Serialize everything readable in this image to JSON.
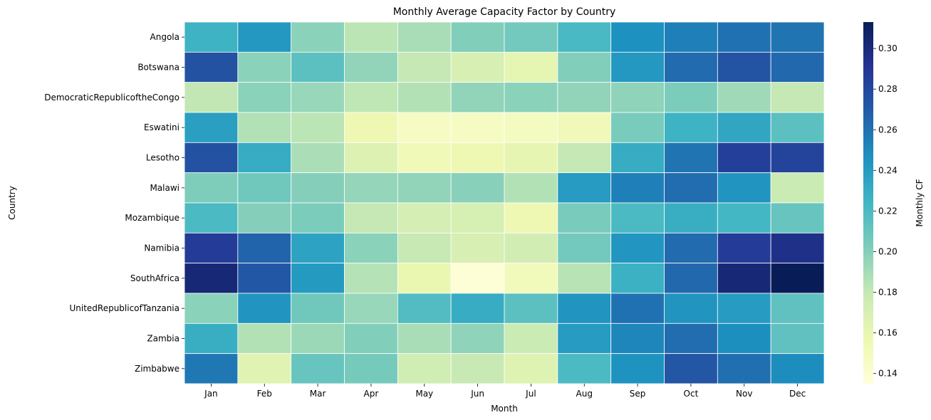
{
  "chart_data": {
    "type": "heatmap",
    "title": "Monthly Average Capacity Factor by Country",
    "xlabel": "Month",
    "ylabel": "Country",
    "colorbar_label": "Monthly CF",
    "colormap": "YlGnBu",
    "color_range": [
      0.135,
      0.313
    ],
    "colorbar_ticks": [
      "0.14",
      "0.16",
      "0.18",
      "0.20",
      "0.22",
      "0.24",
      "0.26",
      "0.28",
      "0.30"
    ],
    "colorbar_tick_values": [
      0.14,
      0.16,
      0.18,
      0.2,
      0.22,
      0.24,
      0.26,
      0.28,
      0.3
    ],
    "x": [
      "Jan",
      "Feb",
      "Mar",
      "Apr",
      "May",
      "Jun",
      "Jul",
      "Aug",
      "Sep",
      "Oct",
      "Nov",
      "Dec"
    ],
    "y": [
      "Angola",
      "Botswana",
      "DemocraticRepublicoftheCongo",
      "Eswatini",
      "Lesotho",
      "Malawi",
      "Mozambique",
      "Namibia",
      "SouthAfrica",
      "UnitedRepublicofTanzania",
      "Zambia",
      "Zimbabwe"
    ],
    "values": [
      [
        0.226,
        0.242,
        0.198,
        0.183,
        0.189,
        0.201,
        0.206,
        0.221,
        0.246,
        0.254,
        0.26,
        0.259
      ],
      [
        0.275,
        0.198,
        0.214,
        0.196,
        0.18,
        0.17,
        0.162,
        0.201,
        0.242,
        0.263,
        0.274,
        0.264
      ],
      [
        0.181,
        0.198,
        0.194,
        0.182,
        0.186,
        0.196,
        0.198,
        0.196,
        0.197,
        0.203,
        0.192,
        0.18
      ],
      [
        0.238,
        0.186,
        0.183,
        0.156,
        0.147,
        0.147,
        0.149,
        0.153,
        0.204,
        0.226,
        0.234,
        0.214
      ],
      [
        0.275,
        0.23,
        0.188,
        0.167,
        0.154,
        0.156,
        0.161,
        0.18,
        0.23,
        0.259,
        0.285,
        0.283
      ],
      [
        0.202,
        0.207,
        0.2,
        0.195,
        0.196,
        0.199,
        0.186,
        0.24,
        0.254,
        0.262,
        0.244,
        0.177
      ],
      [
        0.22,
        0.2,
        0.203,
        0.18,
        0.172,
        0.171,
        0.156,
        0.204,
        0.22,
        0.229,
        0.223,
        0.21
      ],
      [
        0.287,
        0.266,
        0.236,
        0.198,
        0.179,
        0.17,
        0.173,
        0.206,
        0.243,
        0.263,
        0.287,
        0.295
      ],
      [
        0.302,
        0.272,
        0.241,
        0.185,
        0.159,
        0.137,
        0.152,
        0.184,
        0.227,
        0.264,
        0.302,
        0.313
      ],
      [
        0.198,
        0.244,
        0.207,
        0.194,
        0.218,
        0.23,
        0.214,
        0.244,
        0.26,
        0.244,
        0.24,
        0.213
      ],
      [
        0.229,
        0.186,
        0.193,
        0.201,
        0.189,
        0.197,
        0.177,
        0.24,
        0.251,
        0.262,
        0.247,
        0.213
      ],
      [
        0.257,
        0.164,
        0.21,
        0.205,
        0.174,
        0.179,
        0.166,
        0.22,
        0.245,
        0.273,
        0.261,
        0.248
      ]
    ]
  }
}
